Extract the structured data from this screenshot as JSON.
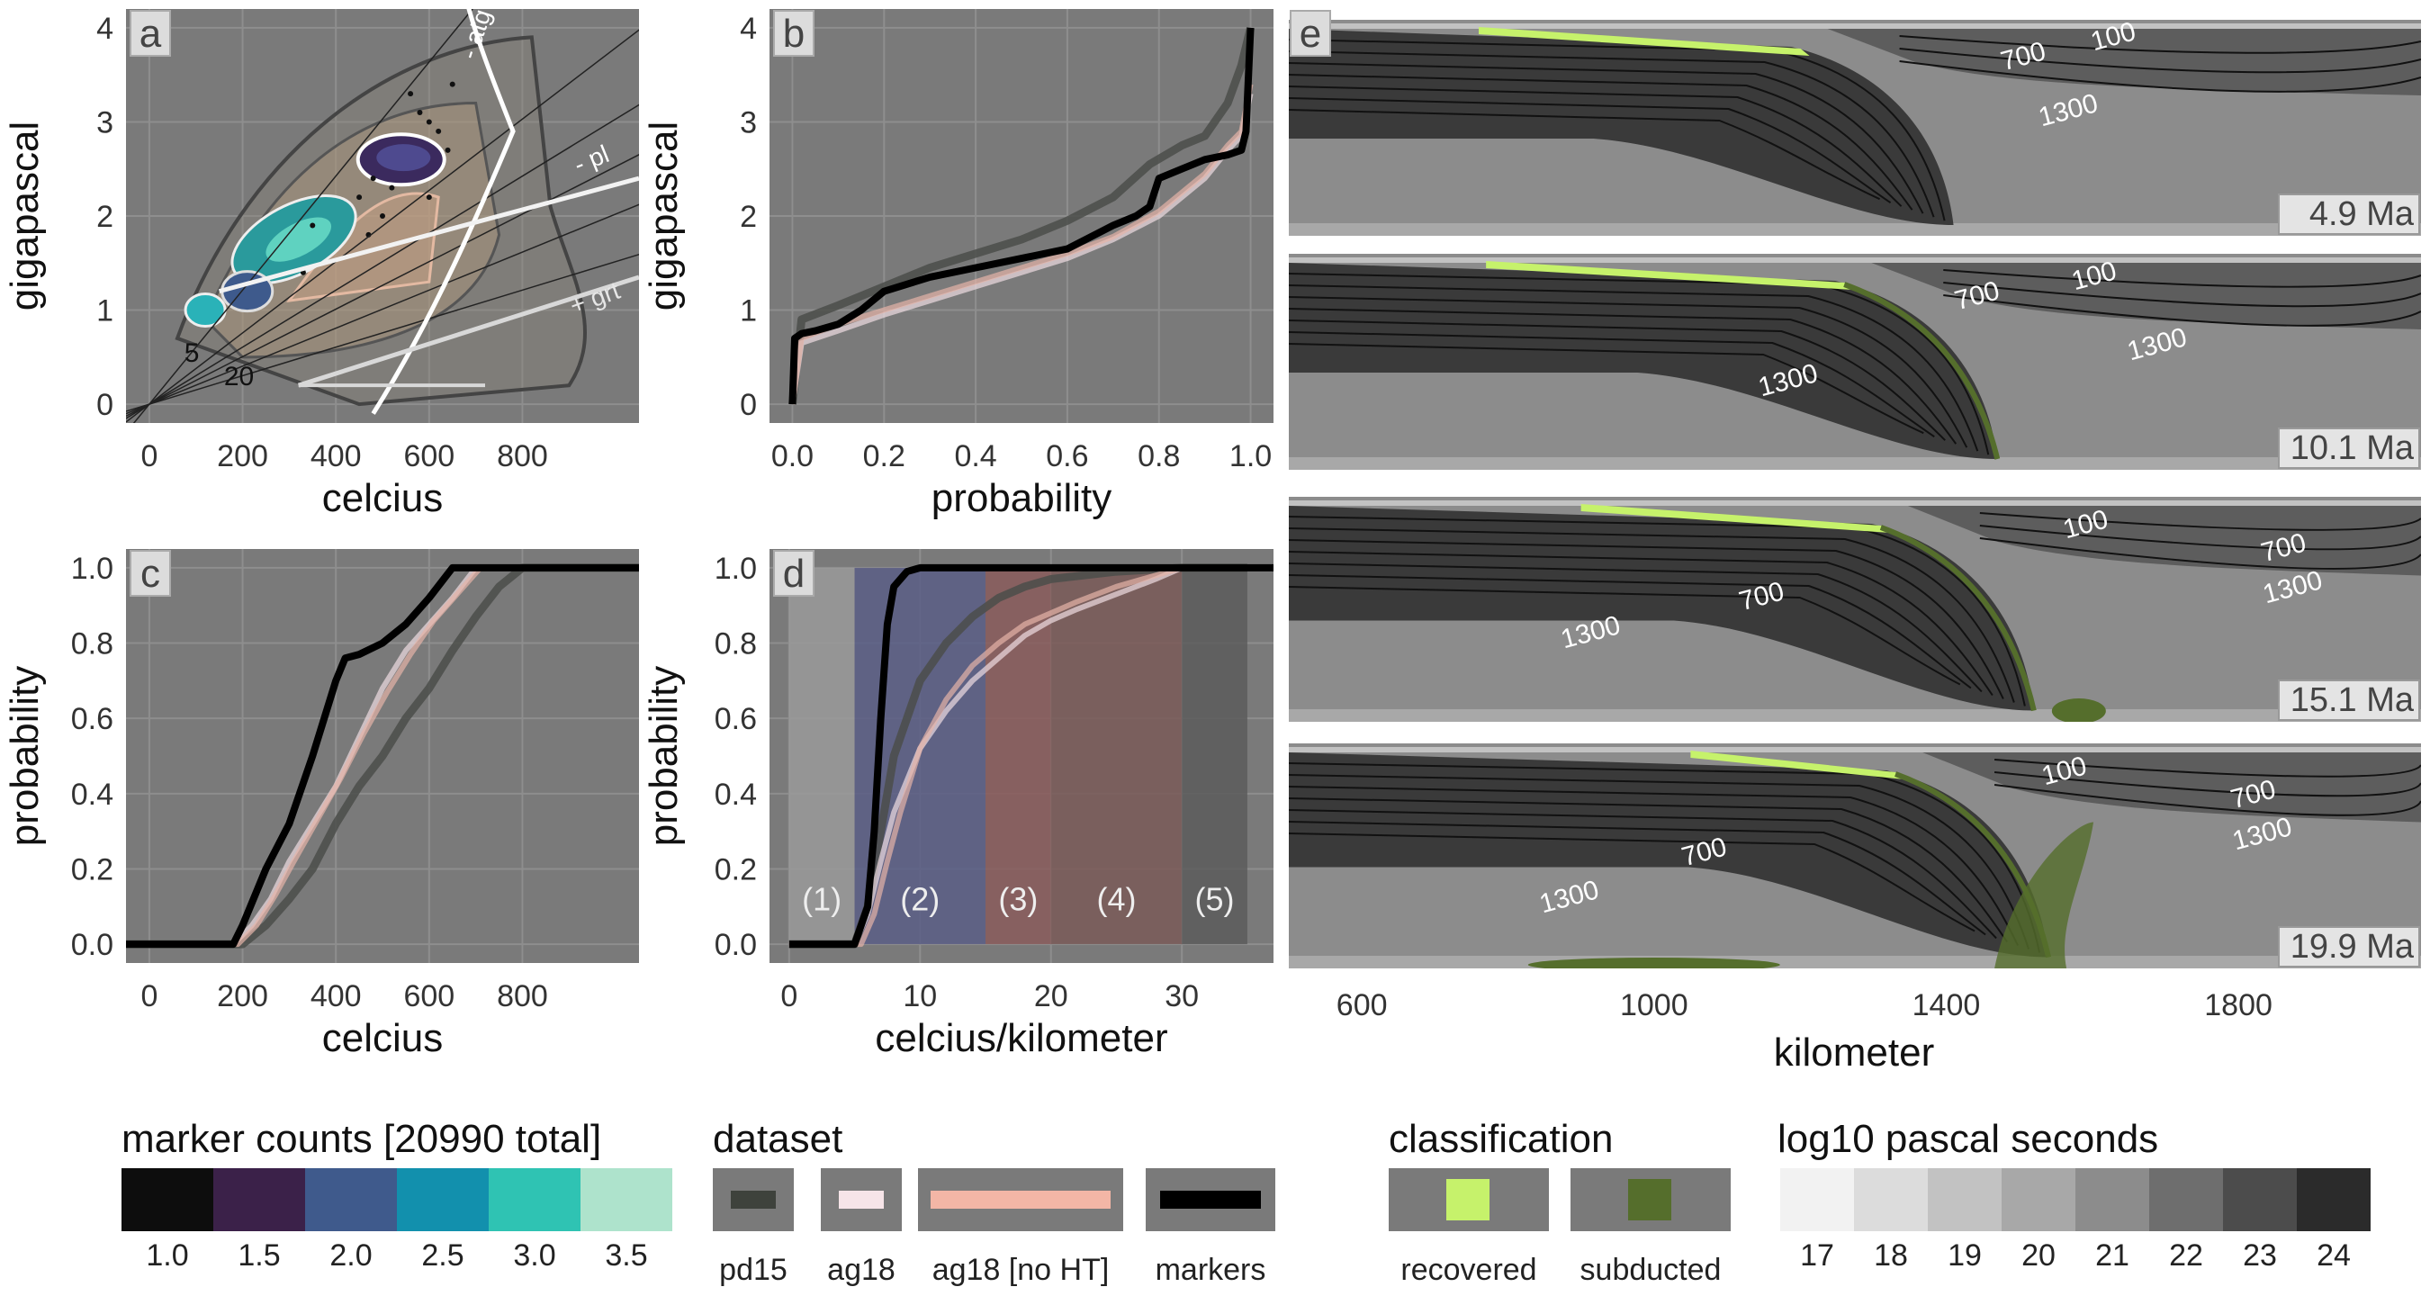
{
  "chart_data": [
    {
      "panel": "a",
      "type": "scatter",
      "xlabel": "celcius",
      "ylabel": "gigapascal",
      "xticks": [
        0,
        200,
        400,
        600,
        800
      ],
      "yticks": [
        0,
        1,
        2,
        3,
        4
      ],
      "xlim": [
        -50,
        1050
      ],
      "ylim": [
        -0.2,
        4.2
      ],
      "geotherm_labels": [
        "5",
        "20"
      ],
      "reaction_labels": [
        "- atg",
        "- pl",
        "+ grt"
      ]
    },
    {
      "panel": "b",
      "type": "line",
      "xlabel": "probability",
      "ylabel": "gigapascal",
      "xticks": [
        0.0,
        0.2,
        0.4,
        0.6,
        0.8,
        1.0
      ],
      "yticks": [
        0,
        1,
        2,
        3,
        4
      ],
      "xlim": [
        -0.05,
        1.05
      ],
      "ylim": [
        -0.2,
        4.2
      ],
      "series": [
        {
          "name": "pd15",
          "x": [
            0,
            0.02,
            0.1,
            0.2,
            0.3,
            0.4,
            0.5,
            0.6,
            0.7,
            0.78,
            0.85,
            0.9,
            0.95,
            0.98,
            1.0
          ],
          "y": [
            0,
            0.9,
            1.05,
            1.25,
            1.45,
            1.6,
            1.75,
            1.95,
            2.2,
            2.55,
            2.75,
            2.85,
            3.2,
            3.6,
            4.0
          ]
        },
        {
          "name": "ag18",
          "x": [
            0,
            0.02,
            0.1,
            0.2,
            0.3,
            0.4,
            0.5,
            0.6,
            0.7,
            0.8,
            0.9,
            0.95,
            0.98,
            1.0
          ],
          "y": [
            0,
            0.65,
            0.78,
            0.95,
            1.1,
            1.25,
            1.4,
            1.55,
            1.75,
            2.0,
            2.4,
            2.7,
            2.85,
            3.3
          ]
        },
        {
          "name": "ag18 [no HT]",
          "x": [
            0,
            0.02,
            0.1,
            0.2,
            0.3,
            0.4,
            0.5,
            0.6,
            0.7,
            0.8,
            0.9,
            0.95,
            0.98,
            1.0
          ],
          "y": [
            0,
            0.7,
            0.85,
            1.0,
            1.15,
            1.3,
            1.45,
            1.6,
            1.78,
            2.05,
            2.45,
            2.75,
            2.9,
            3.4
          ]
        },
        {
          "name": "markers",
          "x": [
            0,
            0.005,
            0.02,
            0.05,
            0.1,
            0.15,
            0.2,
            0.3,
            0.4,
            0.5,
            0.6,
            0.7,
            0.75,
            0.78,
            0.8,
            0.85,
            0.9,
            0.95,
            0.98,
            0.99,
            1.0
          ],
          "y": [
            0,
            0.7,
            0.75,
            0.78,
            0.85,
            1.0,
            1.2,
            1.35,
            1.45,
            1.55,
            1.65,
            1.9,
            2.0,
            2.1,
            2.4,
            2.5,
            2.6,
            2.65,
            2.7,
            2.9,
            4.0
          ]
        }
      ]
    },
    {
      "panel": "c",
      "type": "line",
      "xlabel": "celcius",
      "ylabel": "probability",
      "xticks": [
        0,
        200,
        400,
        600,
        800
      ],
      "yticks": [
        0.0,
        0.2,
        0.4,
        0.6,
        0.8,
        1.0
      ],
      "xlim": [
        -50,
        1050
      ],
      "ylim": [
        -0.05,
        1.05
      ],
      "series": [
        {
          "name": "pd15",
          "x": [
            -50,
            200,
            250,
            300,
            350,
            400,
            450,
            500,
            550,
            600,
            650,
            700,
            750,
            800,
            1050
          ],
          "y": [
            0,
            0,
            0.05,
            0.12,
            0.2,
            0.32,
            0.42,
            0.5,
            0.6,
            0.68,
            0.78,
            0.87,
            0.95,
            1.0,
            1.0
          ]
        },
        {
          "name": "ag18",
          "x": [
            -50,
            180,
            220,
            260,
            300,
            350,
            400,
            450,
            500,
            550,
            600,
            650,
            700,
            1050
          ],
          "y": [
            0,
            0,
            0.05,
            0.12,
            0.22,
            0.32,
            0.42,
            0.55,
            0.68,
            0.78,
            0.85,
            0.92,
            1.0,
            1.0
          ]
        },
        {
          "name": "ag18 [no HT]",
          "x": [
            -50,
            190,
            230,
            270,
            310,
            360,
            410,
            460,
            510,
            560,
            610,
            660,
            710,
            1050
          ],
          "y": [
            0,
            0,
            0.05,
            0.13,
            0.22,
            0.33,
            0.44,
            0.56,
            0.67,
            0.77,
            0.86,
            0.93,
            1.0,
            1.0
          ]
        },
        {
          "name": "markers",
          "x": [
            -50,
            180,
            200,
            250,
            300,
            350,
            400,
            420,
            450,
            500,
            550,
            600,
            650,
            700,
            1050
          ],
          "y": [
            0,
            0,
            0.05,
            0.2,
            0.32,
            0.5,
            0.7,
            0.76,
            0.77,
            0.8,
            0.85,
            0.92,
            1.0,
            1.0,
            1.0
          ]
        }
      ]
    },
    {
      "panel": "d",
      "type": "line",
      "xlabel": "celcius/kilometer",
      "ylabel": "probability",
      "xticks": [
        0,
        10,
        20,
        30
      ],
      "yticks": [
        0.0,
        0.2,
        0.4,
        0.6,
        0.8,
        1.0
      ],
      "xlim": [
        -1.5,
        37
      ],
      "ylim": [
        -0.05,
        1.05
      ],
      "regions": [
        {
          "label": "(1)",
          "from": 0,
          "to": 5,
          "color": "#9a9a9a"
        },
        {
          "label": "(2)",
          "from": 5,
          "to": 15,
          "color": "#5a5e86"
        },
        {
          "label": "(3)",
          "from": 15,
          "to": 20,
          "color": "#8a5c5c"
        },
        {
          "label": "(4)",
          "from": 20,
          "to": 30,
          "color": "#7a5a58"
        },
        {
          "label": "(5)",
          "from": 30,
          "to": 35,
          "color": "#5c5c5c"
        }
      ],
      "series": [
        {
          "name": "pd15",
          "x": [
            0,
            5,
            6,
            7,
            8,
            9,
            10,
            12,
            14,
            16,
            18,
            20,
            25,
            30,
            35
          ],
          "y": [
            0,
            0,
            0.1,
            0.3,
            0.5,
            0.6,
            0.7,
            0.8,
            0.87,
            0.92,
            0.95,
            0.97,
            0.99,
            1.0,
            1.0
          ]
        },
        {
          "name": "ag18",
          "x": [
            0,
            5,
            6,
            7,
            8,
            10,
            12,
            14,
            16,
            18,
            20,
            22,
            25,
            28,
            30,
            35
          ],
          "y": [
            0,
            0,
            0.08,
            0.22,
            0.35,
            0.52,
            0.62,
            0.7,
            0.76,
            0.82,
            0.86,
            0.89,
            0.93,
            0.97,
            1.0,
            1.0
          ]
        },
        {
          "name": "ag18 [no HT]",
          "x": [
            0,
            5.5,
            6.5,
            7.5,
            8.5,
            10,
            12,
            14,
            16,
            18,
            20,
            22,
            25,
            28,
            30,
            35
          ],
          "y": [
            0,
            0,
            0.08,
            0.22,
            0.35,
            0.52,
            0.65,
            0.74,
            0.8,
            0.85,
            0.88,
            0.91,
            0.95,
            0.98,
            1.0,
            1.0
          ]
        },
        {
          "name": "markers",
          "x": [
            0,
            5,
            5.5,
            6,
            6.5,
            7,
            7.5,
            8,
            9,
            10,
            15,
            20,
            30,
            37
          ],
          "y": [
            0,
            0,
            0.05,
            0.1,
            0.3,
            0.6,
            0.85,
            0.95,
            0.99,
            1.0,
            1.0,
            1.0,
            1.0,
            1.0
          ]
        }
      ]
    },
    {
      "panel": "e",
      "type": "heatmap",
      "xlabel": "kilometer",
      "xticks": [
        600,
        1000,
        1400,
        1800
      ],
      "xlim": [
        500,
        2050
      ],
      "snapshots": [
        {
          "label": "4.9 Ma",
          "isotherms": [
            "100",
            "700",
            "1300"
          ]
        },
        {
          "label": "10.1 Ma",
          "isotherms": [
            "100",
            "700",
            "1300",
            "1300"
          ]
        },
        {
          "label": "15.1 Ma",
          "isotherms": [
            "100",
            "700",
            "1300",
            "700",
            "1300"
          ]
        },
        {
          "label": "19.9 Ma",
          "isotherms": [
            "100",
            "700",
            "1300",
            "700",
            "1300"
          ]
        }
      ]
    }
  ],
  "panel_letters": [
    "a",
    "b",
    "c",
    "d",
    "e"
  ],
  "legends": {
    "marker_counts": {
      "title": "marker counts [20990 total]",
      "colors": [
        "#0d0d0d",
        "#3b2149",
        "#3f5a8c",
        "#1290ad",
        "#2fc3b3",
        "#aee3cc"
      ],
      "labels": [
        "1.0",
        "1.5",
        "2.0",
        "2.5",
        "3.0",
        "3.5"
      ]
    },
    "dataset": {
      "title": "dataset",
      "items": [
        {
          "label": "pd15",
          "color": "#3e423c"
        },
        {
          "label": "ag18",
          "color": "#f6e4e8"
        },
        {
          "label": "ag18 [no HT]",
          "color": "#f3b6a6"
        },
        {
          "label": "markers",
          "color": "#000000"
        }
      ]
    },
    "classification": {
      "title": "classification",
      "items": [
        {
          "label": "recovered",
          "color": "#c6f26b"
        },
        {
          "label": "subducted",
          "color": "#556e2c"
        }
      ]
    },
    "viscosity": {
      "title": "log10 pascal seconds",
      "colors": [
        "#f2f2f2",
        "#dcdcdc",
        "#c2c2c2",
        "#a8a8a8",
        "#8c8c8c",
        "#6e6e6e",
        "#4c4c4c",
        "#2b2b2b"
      ],
      "labels": [
        "17",
        "18",
        "19",
        "20",
        "21",
        "22",
        "23",
        "24"
      ]
    }
  },
  "colors": {
    "panel_bg": "#7a7a7a",
    "grid": "#8e8e8e",
    "recovered": "#c6f26b",
    "subducted": "#556e2c"
  }
}
